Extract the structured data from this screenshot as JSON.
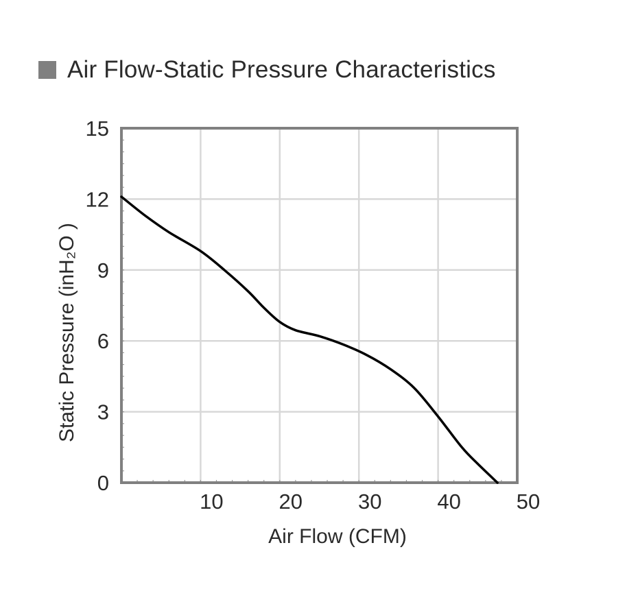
{
  "header": {
    "title": "Air Flow-Static Pressure Characteristics",
    "legend_color": "#808080"
  },
  "chart_data": {
    "type": "line",
    "title": "Air Flow-Static Pressure Characteristics",
    "xlabel": "Air Flow (CFM)",
    "ylabel": "Static Pressure (inH₂O )",
    "xlim": [
      0,
      50
    ],
    "ylim": [
      0,
      15
    ],
    "xticks": [
      10,
      20,
      30,
      40,
      50
    ],
    "yticks": [
      0,
      3,
      6,
      9,
      12,
      15
    ],
    "grid": true,
    "series": [
      {
        "color": "#000000",
        "x": [
          0,
          3,
          6,
          10,
          13,
          16,
          18,
          20,
          22,
          25,
          28,
          31,
          34,
          37,
          40,
          43,
          45,
          47.5
        ],
        "y": [
          12.1,
          11.3,
          10.6,
          9.8,
          9.0,
          8.1,
          7.4,
          6.8,
          6.45,
          6.2,
          5.85,
          5.4,
          4.8,
          4.0,
          2.8,
          1.5,
          0.8,
          0
        ]
      }
    ]
  }
}
